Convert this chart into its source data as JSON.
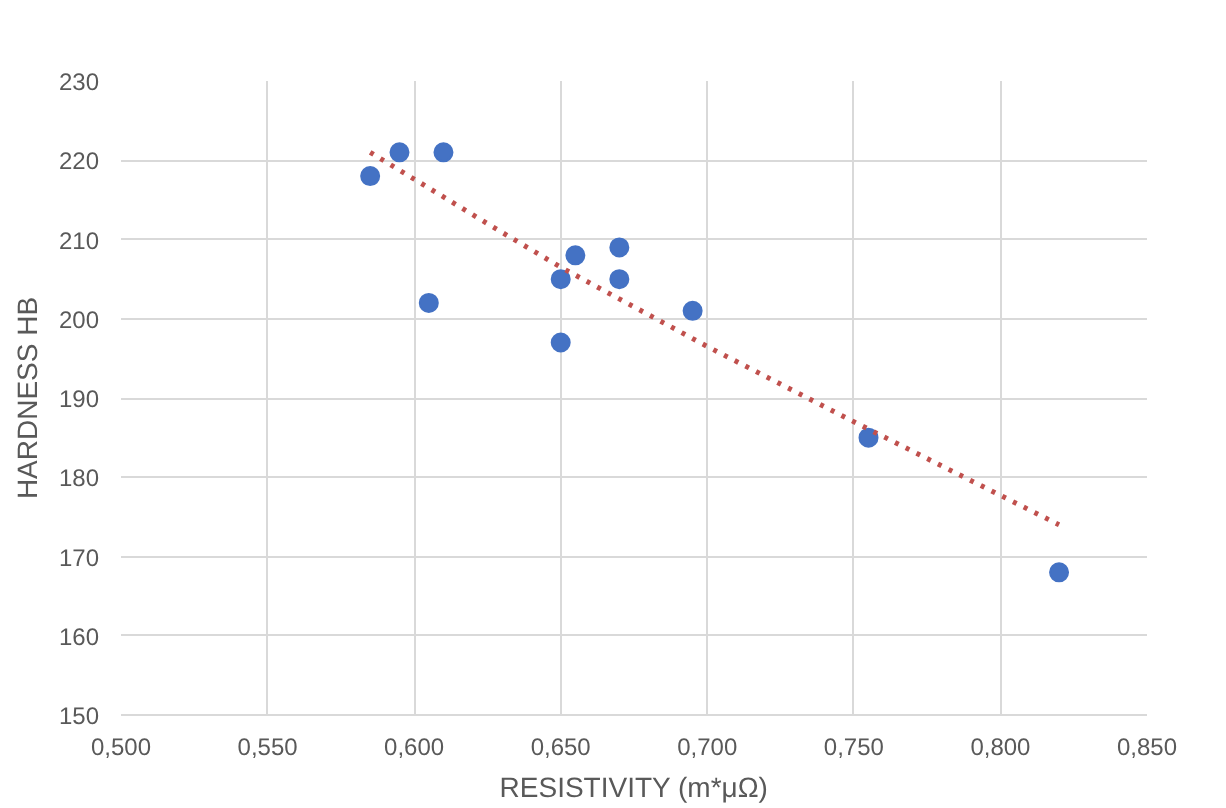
{
  "chart_data": {
    "type": "scatter",
    "xlabel": "RESISTIVITY (m*μΩ)",
    "ylabel": "HARDNESS HB",
    "series": [
      {
        "type": "scatter",
        "color": "#4472c4",
        "marker": "circle",
        "x": [
          0.585,
          0.595,
          0.61,
          0.605,
          0.65,
          0.65,
          0.655,
          0.67,
          0.67,
          0.695,
          0.755,
          0.82
        ],
        "values": [
          218,
          221,
          221,
          202,
          205,
          197,
          208,
          209,
          205,
          201,
          185,
          168
        ]
      },
      {
        "type": "line",
        "color": "#c0504d",
        "line_style": "dotted",
        "marker": "none",
        "x": [
          0.585,
          0.625,
          0.65,
          0.7,
          0.75,
          0.82
        ],
        "values": [
          221,
          212,
          206.5,
          196.5,
          187,
          174
        ]
      }
    ],
    "xlim": [
      0.5,
      0.85
    ],
    "xticks": [
      {
        "value": 0.5,
        "label": "0,500"
      },
      {
        "value": 0.55,
        "label": "0,550"
      },
      {
        "value": 0.6,
        "label": "0,600"
      },
      {
        "value": 0.65,
        "label": "0,650"
      },
      {
        "value": 0.7,
        "label": "0,700"
      },
      {
        "value": 0.75,
        "label": "0,750"
      },
      {
        "value": 0.8,
        "label": "0,800"
      },
      {
        "value": 0.85,
        "label": "0,850"
      }
    ],
    "ylim": [
      150,
      230
    ],
    "yticks": [
      150,
      160,
      170,
      180,
      190,
      200,
      210,
      220,
      230
    ],
    "grid": true
  }
}
